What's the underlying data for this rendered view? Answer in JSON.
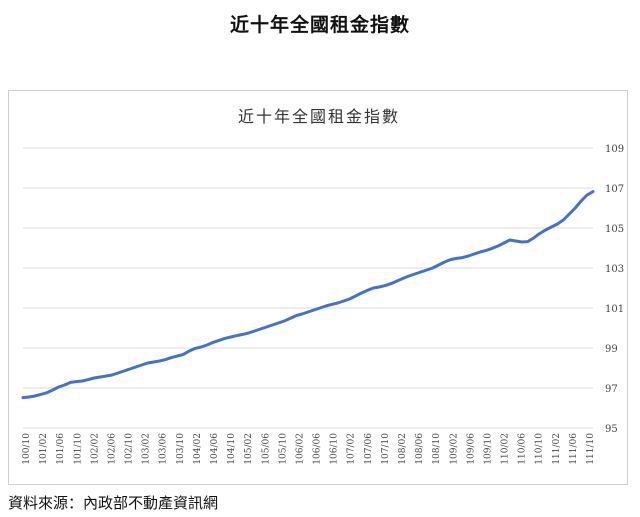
{
  "heading": "近十年全國租金指數",
  "source": "資料來源：內政部不動產資訊網",
  "colors": {
    "series": "#4472c4",
    "grid": "#dcdcdc"
  },
  "chart_data": {
    "type": "line",
    "title": "近十年全國租金指數",
    "xlabel": "",
    "ylabel": "",
    "ylim": [
      95,
      109
    ],
    "yticks": [
      95,
      97,
      99,
      101,
      103,
      105,
      107,
      109
    ],
    "yaxis_position": "right",
    "grid": true,
    "legend": "none",
    "xtick_labels": [
      "100/10",
      "101/02",
      "101/06",
      "101/10",
      "102/02",
      "102/06",
      "102/10",
      "103/02",
      "103/06",
      "103/10",
      "104/02",
      "104/06",
      "104/10",
      "105/02",
      "105/06",
      "105/10",
      "106/02",
      "106/06",
      "106/10",
      "107/02",
      "107/06",
      "107/10",
      "108/02",
      "108/06",
      "108/10",
      "109/02",
      "109/06",
      "109/10",
      "110/02",
      "110/06",
      "110/10",
      "111/02",
      "111/06",
      "111/10"
    ],
    "series": [
      {
        "values": [
          96.52,
          96.55,
          96.6,
          96.68,
          96.76,
          96.9,
          97.05,
          97.15,
          97.28,
          97.32,
          97.35,
          97.42,
          97.5,
          97.55,
          97.6,
          97.65,
          97.75,
          97.85,
          97.95,
          98.05,
          98.15,
          98.25,
          98.3,
          98.35,
          98.42,
          98.52,
          98.6,
          98.68,
          98.85,
          98.98,
          99.05,
          99.15,
          99.28,
          99.38,
          99.48,
          99.55,
          99.62,
          99.68,
          99.75,
          99.85,
          99.95,
          100.05,
          100.15,
          100.25,
          100.35,
          100.48,
          100.62,
          100.7,
          100.8,
          100.9,
          101.0,
          101.1,
          101.18,
          101.25,
          101.35,
          101.45,
          101.6,
          101.75,
          101.88,
          102.0,
          102.05,
          102.12,
          102.22,
          102.35,
          102.48,
          102.6,
          102.7,
          102.8,
          102.9,
          103.0,
          103.15,
          103.3,
          103.42,
          103.48,
          103.52,
          103.6,
          103.7,
          103.8,
          103.88,
          103.98,
          104.1,
          104.25,
          104.4,
          104.35,
          104.3,
          104.32,
          104.5,
          104.72,
          104.9,
          105.05,
          105.2,
          105.4,
          105.7,
          106.0,
          106.35,
          106.65,
          106.82
        ]
      }
    ]
  }
}
